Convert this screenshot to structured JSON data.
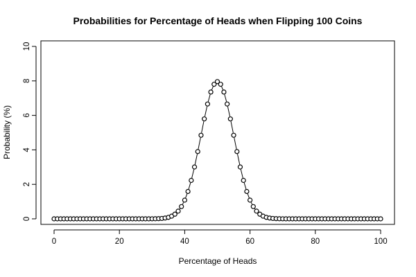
{
  "chart_data": {
    "type": "line",
    "title": "Probabilities for Percentage of Heads when Flipping 100 Coins",
    "xlabel": "Percentage of Heads",
    "ylabel": "Probability (%)",
    "xlim": [
      0,
      100
    ],
    "ylim": [
      0,
      10
    ],
    "xticks": [
      0,
      20,
      40,
      60,
      80,
      100
    ],
    "yticks": [
      0,
      2,
      4,
      6,
      8,
      10
    ],
    "grid": false,
    "point_style": "open-circle",
    "line_style": "dashed-segments",
    "x": [
      0,
      1,
      2,
      3,
      4,
      5,
      6,
      7,
      8,
      9,
      10,
      11,
      12,
      13,
      14,
      15,
      16,
      17,
      18,
      19,
      20,
      21,
      22,
      23,
      24,
      25,
      26,
      27,
      28,
      29,
      30,
      31,
      32,
      33,
      34,
      35,
      36,
      37,
      38,
      39,
      40,
      41,
      42,
      43,
      44,
      45,
      46,
      47,
      48,
      49,
      50,
      51,
      52,
      53,
      54,
      55,
      56,
      57,
      58,
      59,
      60,
      61,
      62,
      63,
      64,
      65,
      66,
      67,
      68,
      69,
      70,
      71,
      72,
      73,
      74,
      75,
      76,
      77,
      78,
      79,
      80,
      81,
      82,
      83,
      84,
      85,
      86,
      87,
      88,
      89,
      90,
      91,
      92,
      93,
      94,
      95,
      96,
      97,
      98,
      99,
      100
    ],
    "y": [
      0,
      0,
      0,
      0,
      0,
      0,
      0,
      0,
      0,
      0,
      0,
      0,
      0,
      0,
      0,
      0,
      0,
      0,
      0,
      0,
      0,
      0,
      0,
      0,
      0,
      0,
      0,
      0,
      0,
      0,
      0.002,
      0.005,
      0.011,
      0.023,
      0.046,
      0.086,
      0.156,
      0.27,
      0.447,
      0.711,
      1.084,
      1.587,
      2.229,
      3.007,
      3.901,
      4.847,
      5.796,
      6.659,
      7.353,
      7.803,
      7.959,
      7.803,
      7.353,
      6.659,
      5.796,
      4.847,
      3.901,
      3.007,
      2.229,
      1.587,
      1.084,
      0.711,
      0.447,
      0.27,
      0.156,
      0.086,
      0.046,
      0.023,
      0.011,
      0.005,
      0.002,
      0,
      0,
      0,
      0,
      0,
      0,
      0,
      0,
      0,
      0,
      0,
      0,
      0,
      0,
      0,
      0,
      0,
      0,
      0,
      0,
      0,
      0,
      0,
      0,
      0,
      0,
      0,
      0,
      0,
      0
    ]
  }
}
